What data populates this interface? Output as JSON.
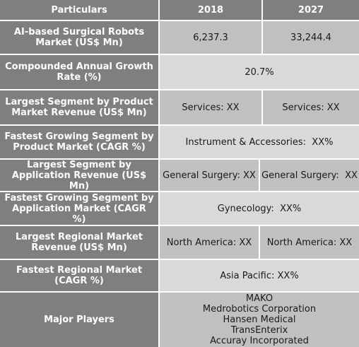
{
  "header": {
    "col1": "Particulars",
    "col2": "2018",
    "col3": "2027"
  },
  "rows": [
    {
      "label": "AI-based Surgical Robots Market (US$ Mn)",
      "v2018": "6,237.3",
      "v2027": "33,244.4"
    },
    {
      "label": "Compounded Annual Growth Rate (%)",
      "value": "20.7%"
    },
    {
      "label": "Largest Segment by Product Market Revenue (US$ Mn)",
      "v2018": "Services: XX",
      "v2027": "Services: XX"
    },
    {
      "label": "Fastest Growing Segment by Product Market (CAGR %)",
      "value": "Instrument & Accessories:  XX%"
    },
    {
      "label": "Largest Segment by Application Revenue (US$ Mn)",
      "v2018": "General Surgery: XX",
      "v2027": "General Surgery:  XX"
    },
    {
      "label": "Fastest Growing Segment by Application Market (CAGR %)",
      "value": "Gynecology:  XX%"
    },
    {
      "label": "Largest Regional Market Revenue (US$ Mn)",
      "v2018": "North America: XX",
      "v2027": "North America: XX"
    },
    {
      "label": "Fastest Regional Market (CAGR %)",
      "value": "Asia Pacific: XX%"
    },
    {
      "label": "Major Players",
      "players": [
        "MAKO",
        "Medrobotics Corporation",
        "Hansen Medical",
        "TransEnterix",
        "Accuray Incorporated"
      ]
    }
  ]
}
